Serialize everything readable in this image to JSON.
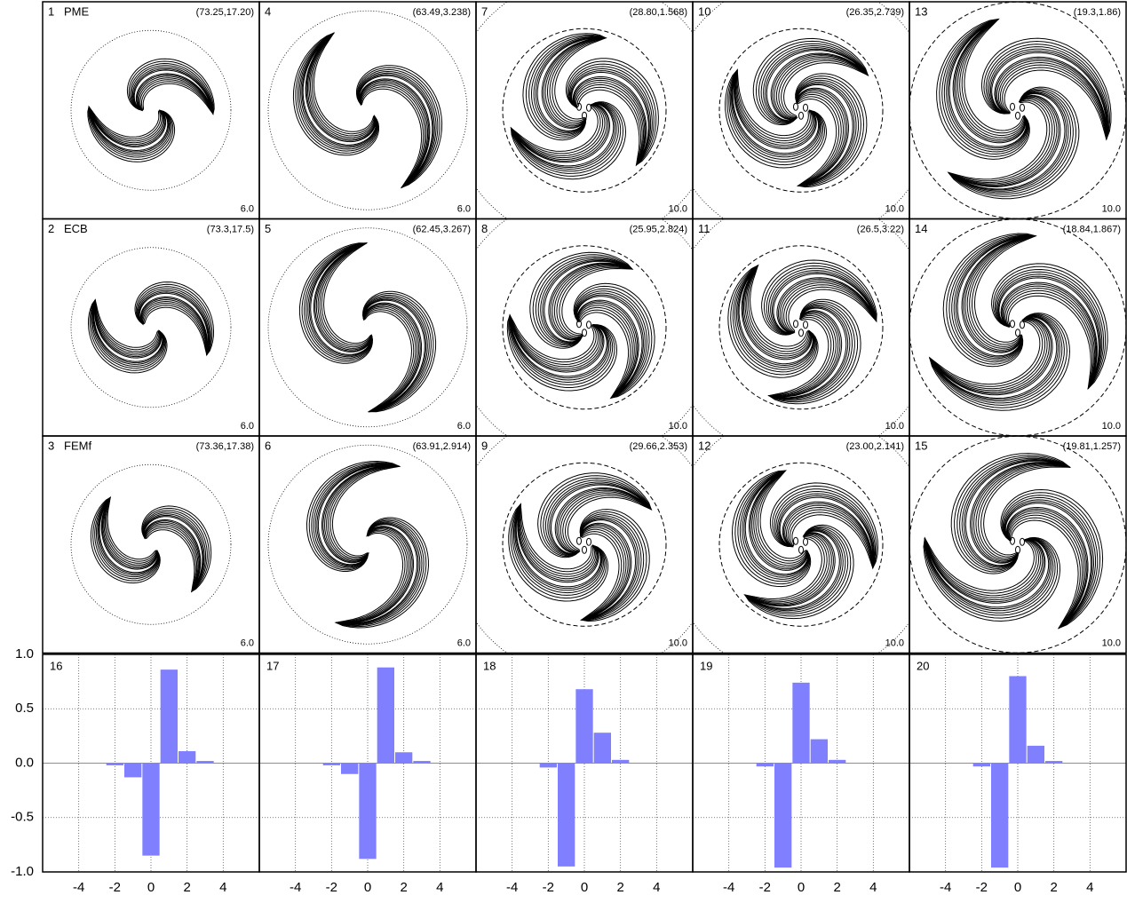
{
  "panels": [
    {
      "number": "1",
      "name": "PME",
      "coords": "(73.25,17.20)",
      "scale": "6.0"
    },
    {
      "number": "4",
      "coords": "(63.49,3.238)",
      "scale": "6.0"
    },
    {
      "number": "7",
      "coords": "(28.80,1.568)",
      "scale": "10.0"
    },
    {
      "number": "10",
      "coords": "(26.35,2.739)",
      "scale": "10.0"
    },
    {
      "number": "13",
      "coords": "(19.3,1.86)",
      "scale": "10.0"
    },
    {
      "number": "2",
      "name": "ECB",
      "coords": "(73.3,17.5)",
      "scale": "6.0"
    },
    {
      "number": "5",
      "coords": "(62.45,3.267)",
      "scale": "6.0"
    },
    {
      "number": "8",
      "coords": "(25.95,2.824)",
      "scale": "10.0"
    },
    {
      "number": "11",
      "coords": "(26.5,3.22)",
      "scale": "10.0"
    },
    {
      "number": "14",
      "coords": "(18.84,1.867)",
      "scale": "10.0"
    },
    {
      "number": "3",
      "name": "FEMf",
      "coords": "(73.36,17.38)",
      "scale": "6.0"
    },
    {
      "number": "6",
      "coords": "(63.91,2.914)",
      "scale": "6.0"
    },
    {
      "number": "9",
      "coords": "(29.66,2.353)",
      "scale": "10.0"
    },
    {
      "number": "12",
      "coords": "(23.00,2.141)",
      "scale": "10.0"
    },
    {
      "number": "15",
      "coords": "(19.81,1.257)",
      "scale": "10.0"
    }
  ],
  "chart_data": [
    {
      "type": "bar",
      "label": "16",
      "x": [
        -5,
        -4,
        -3,
        -2,
        -1,
        0,
        1,
        2,
        3,
        4,
        5
      ],
      "values": [
        0,
        0,
        0,
        -0.02,
        -0.13,
        -0.85,
        0.86,
        0.11,
        0.02,
        0,
        0
      ],
      "color": "#8080ff",
      "xlim": [
        -6,
        6
      ],
      "ylim": [
        -1,
        1
      ],
      "xticks": [
        -4,
        -2,
        0,
        2,
        4
      ],
      "yticks": [
        {
          "value": -1,
          "label": "-1.0"
        },
        -0.5,
        {
          "value": 0,
          "label": "0.0"
        },
        0.5,
        {
          "value": 1,
          "label": "1.0"
        }
      ],
      "grid": true
    },
    {
      "type": "bar",
      "label": "17",
      "x": [
        -5,
        -4,
        -3,
        -2,
        -1,
        0,
        1,
        2,
        3,
        4,
        5
      ],
      "values": [
        0,
        0,
        0,
        -0.02,
        -0.1,
        -0.88,
        0.88,
        0.1,
        0.02,
        0,
        0
      ],
      "color": "#8080ff",
      "xlim": [
        -6,
        6
      ],
      "ylim": [
        -1,
        1
      ],
      "xticks": [
        -4,
        -2,
        0,
        2,
        4
      ],
      "yticks": [
        -1,
        -0.5,
        0,
        0.5,
        1
      ],
      "grid": true
    },
    {
      "type": "bar",
      "label": "18",
      "x": [
        -5,
        -4,
        -3,
        -2,
        -1,
        0,
        1,
        2,
        3,
        4,
        5
      ],
      "values": [
        0,
        0,
        0,
        -0.04,
        -0.95,
        0.68,
        0.28,
        0.03,
        0,
        0,
        0
      ],
      "color": "#8080ff",
      "xlim": [
        -6,
        6
      ],
      "ylim": [
        -1,
        1
      ],
      "xticks": [
        -4,
        -2,
        0,
        2,
        4
      ],
      "yticks": [
        -1,
        -0.5,
        0,
        0.5,
        1
      ],
      "grid": true
    },
    {
      "type": "bar",
      "label": "19",
      "x": [
        -5,
        -4,
        -3,
        -2,
        -1,
        0,
        1,
        2,
        3,
        4,
        5
      ],
      "values": [
        0,
        0,
        0,
        -0.03,
        -0.96,
        0.74,
        0.22,
        0.03,
        0,
        0,
        0
      ],
      "color": "#8080ff",
      "xlim": [
        -6,
        6
      ],
      "ylim": [
        -1,
        1
      ],
      "xticks": [
        -4,
        -2,
        0,
        2,
        4
      ],
      "yticks": [
        -1,
        -0.5,
        0,
        0.5,
        1
      ],
      "grid": true
    },
    {
      "type": "bar",
      "label": "20",
      "x": [
        -5,
        -4,
        -3,
        -2,
        -1,
        0,
        1,
        2,
        3,
        4,
        5
      ],
      "values": [
        0,
        0,
        0,
        -0.03,
        -0.96,
        0.8,
        0.16,
        0.02,
        0,
        0,
        0
      ],
      "color": "#8080ff",
      "xlim": [
        -6,
        6
      ],
      "ylim": [
        -1,
        1
      ],
      "xticks": [
        -4,
        -2,
        0,
        2,
        4
      ],
      "yticks": [
        -1,
        -0.5,
        0,
        0.5,
        1
      ],
      "grid": true
    }
  ]
}
